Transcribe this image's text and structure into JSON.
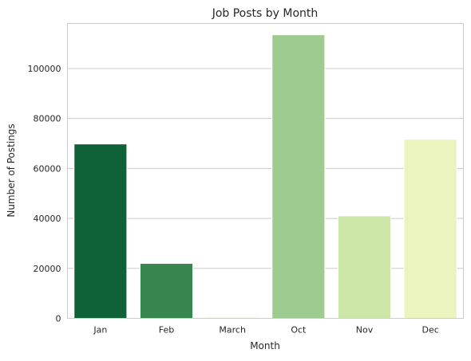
{
  "chart_data": {
    "type": "bar",
    "title": "Job Posts by Month",
    "xlabel": "Month",
    "ylabel": "Number of Postings",
    "categories": [
      "Jan",
      "Feb",
      "March",
      "Oct",
      "Nov",
      "Dec"
    ],
    "values": [
      69800,
      22000,
      800,
      113500,
      41000,
      71700
    ],
    "colors": [
      "#0f6137",
      "#38864f",
      "#f5faee",
      "#9ecb8f",
      "#cbe6a6",
      "#ebf4bf"
    ],
    "ylim": [
      0,
      118000
    ],
    "yticks": [
      0,
      20000,
      40000,
      60000,
      80000,
      100000
    ],
    "ytick_labels": [
      "0",
      "20000",
      "40000",
      "60000",
      "80000",
      "100000"
    ],
    "grid": "horizontal",
    "style": {
      "grid_color": "#cccccc",
      "axis_color": "#cccccc",
      "bar_edge_color": "#ffffff"
    }
  }
}
